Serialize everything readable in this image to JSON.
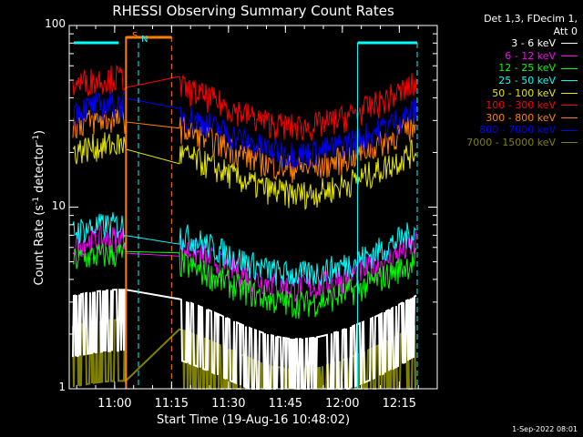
{
  "chart_data": {
    "type": "line",
    "title": "RHESSI Observing Summary Count Rates",
    "xlabel": "Start Time (19-Aug-16 10:48:02)",
    "ylabel_main": "Count Rate (s",
    "ylabel_sup": "-1",
    "ylabel_tail": " detector",
    "ylabel_sup2": "-1",
    "ylabel_end": ")",
    "y_scale": "log",
    "ylim": [
      1,
      100
    ],
    "yticks": [
      "100",
      "10",
      "1"
    ],
    "xlim": [
      "10:48:02",
      "12:25:00"
    ],
    "xticks": [
      "11:00",
      "11:15",
      "11:30",
      "11:45",
      "12:00",
      "12:15"
    ],
    "legend_header": [
      "Det 1,3, FDecim 1,",
      "Att 0"
    ],
    "legend_position": "top-right",
    "series": [
      {
        "name": "3 - 6 keV",
        "color": "#ffffff",
        "level": 2.2
      },
      {
        "name": "6 - 12 keV",
        "color": "#ff00ff",
        "level": 5.5
      },
      {
        "name": "12 - 25 keV",
        "color": "#00ff00",
        "level": 4.5
      },
      {
        "name": "25 - 50 keV",
        "color": "#00ffff",
        "level": 6.5
      },
      {
        "name": "50 - 100 keV",
        "color": "#e6e600",
        "level": 18.0
      },
      {
        "name": "100 - 300 keV",
        "color": "#ff0000",
        "level": 42.0
      },
      {
        "name": "300 - 800 keV",
        "color": "#ff8000",
        "level": 25.0
      },
      {
        "name": "800 - 7000 keV",
        "color": "#0000ff",
        "level": 30.0
      },
      {
        "name": "7000 - 15000 keV",
        "color": "#808000",
        "level": 1.5
      }
    ],
    "markers": {
      "saa_label": "S",
      "night_label": "N",
      "gap_start": "11:03",
      "gap_end": "11:15"
    }
  },
  "footer_date": "1-Sep-2022 08:01"
}
